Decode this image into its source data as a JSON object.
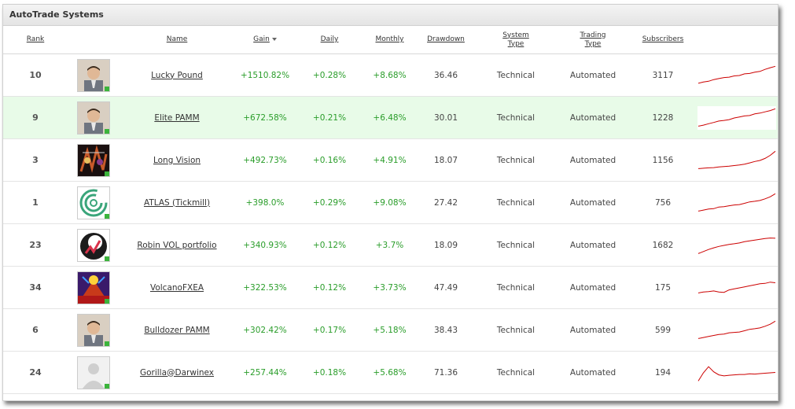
{
  "panel": {
    "title": "AutoTrade Systems"
  },
  "columns": {
    "rank": "Rank",
    "name": "Name",
    "gain": "Gain",
    "daily": "Daily",
    "monthly": "Monthly",
    "drawdown": "Drawdown",
    "system_type_1": "System",
    "system_type_2": "Type",
    "trading_type_1": "Trading",
    "trading_type_2": "Type",
    "subscribers": "Subscribers"
  },
  "rows": [
    {
      "rank": "10",
      "avatar": "person",
      "name": "Lucky Pound",
      "gain": "+1510.82%",
      "daily": "+0.28%",
      "monthly": "+8.68%",
      "drawdown": "36.46",
      "system_type": "Technical",
      "trading_type": "Automated",
      "subscribers": "3117",
      "trend": [
        0.12,
        0.18,
        0.22,
        0.3,
        0.35,
        0.4,
        0.42,
        0.48,
        0.5,
        0.58,
        0.6,
        0.66,
        0.7,
        0.8,
        0.88,
        0.95
      ]
    },
    {
      "rank": "9",
      "avatar": "person",
      "name": "Elite PAMM",
      "gain": "+672.58%",
      "daily": "+0.21%",
      "monthly": "+6.48%",
      "drawdown": "30.01",
      "system_type": "Technical",
      "trading_type": "Automated",
      "subscribers": "1228",
      "trend": [
        0.1,
        0.15,
        0.22,
        0.28,
        0.35,
        0.38,
        0.42,
        0.5,
        0.55,
        0.6,
        0.62,
        0.7,
        0.74,
        0.8,
        0.86,
        0.95
      ]
    },
    {
      "rank": "3",
      "avatar": "art",
      "name": "Long Vision",
      "gain": "+492.73%",
      "daily": "+0.16%",
      "monthly": "+4.91%",
      "drawdown": "18.07",
      "system_type": "Technical",
      "trading_type": "Automated",
      "subscribers": "1156",
      "trend": [
        0.1,
        0.12,
        0.14,
        0.15,
        0.18,
        0.2,
        0.22,
        0.25,
        0.28,
        0.32,
        0.38,
        0.45,
        0.5,
        0.6,
        0.75,
        0.95
      ]
    },
    {
      "rank": "1",
      "avatar": "atlas",
      "name": "ATLAS (Tickmill)",
      "gain": "+398.0%",
      "daily": "+0.29%",
      "monthly": "+9.08%",
      "drawdown": "27.42",
      "system_type": "Technical",
      "trading_type": "Automated",
      "subscribers": "756",
      "trend": [
        0.1,
        0.15,
        0.2,
        0.22,
        0.3,
        0.32,
        0.36,
        0.4,
        0.42,
        0.48,
        0.55,
        0.58,
        0.62,
        0.7,
        0.8,
        0.95
      ]
    },
    {
      "rank": "23",
      "avatar": "robin",
      "name": "Robin VOL portfolio",
      "gain": "+340.93%",
      "daily": "+0.12%",
      "monthly": "+3.7%",
      "drawdown": "18.09",
      "system_type": "Technical",
      "trading_type": "Automated",
      "subscribers": "1682",
      "trend": [
        0.1,
        0.2,
        0.3,
        0.38,
        0.45,
        0.5,
        0.55,
        0.58,
        0.62,
        0.68,
        0.72,
        0.76,
        0.8,
        0.84,
        0.86,
        0.85
      ]
    },
    {
      "rank": "34",
      "avatar": "volcan",
      "name": "VolcanoFXEA",
      "gain": "+322.53%",
      "daily": "+0.12%",
      "monthly": "+3.73%",
      "drawdown": "47.49",
      "system_type": "Technical",
      "trading_type": "Automated",
      "subscribers": "175",
      "trend": [
        0.25,
        0.3,
        0.32,
        0.35,
        0.3,
        0.28,
        0.4,
        0.45,
        0.5,
        0.55,
        0.6,
        0.65,
        0.7,
        0.72,
        0.78,
        0.75
      ]
    },
    {
      "rank": "6",
      "avatar": "person",
      "name": "Bulldozer PAMM",
      "gain": "+302.42%",
      "daily": "+0.17%",
      "monthly": "+5.18%",
      "drawdown": "38.43",
      "system_type": "Technical",
      "trading_type": "Automated",
      "subscribers": "599",
      "trend": [
        0.1,
        0.15,
        0.2,
        0.25,
        0.3,
        0.32,
        0.38,
        0.4,
        0.42,
        0.48,
        0.55,
        0.58,
        0.62,
        0.7,
        0.8,
        0.95
      ]
    },
    {
      "rank": "24",
      "avatar": "blank",
      "name": "Gorilla@Darwinex",
      "gain": "+257.44%",
      "daily": "+0.18%",
      "monthly": "+5.68%",
      "drawdown": "71.36",
      "system_type": "Technical",
      "trading_type": "Automated",
      "subscribers": "194",
      "trend": [
        0.1,
        0.5,
        0.8,
        0.55,
        0.4,
        0.35,
        0.38,
        0.4,
        0.42,
        0.42,
        0.45,
        0.44,
        0.46,
        0.48,
        0.5,
        0.52
      ]
    }
  ],
  "colors": {
    "gain": "#2a9d2a",
    "spark": "#cc0000",
    "highlight": "#e8fbe8"
  },
  "sort": {
    "column": "gain",
    "direction": "desc"
  }
}
